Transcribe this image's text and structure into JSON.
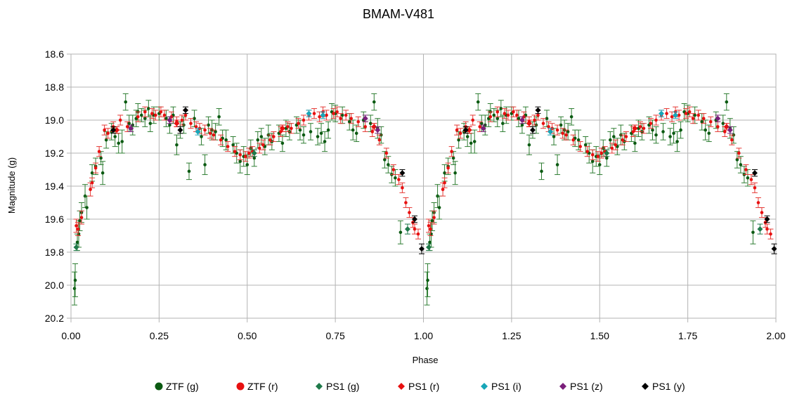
{
  "chart_data": {
    "type": "scatter",
    "title": "BMAM-V481",
    "xlabel": "Phase",
    "ylabel": "Magnitude (g)",
    "xlim": [
      0,
      2
    ],
    "ylim": [
      18.6,
      20.2
    ],
    "y_inverted": true,
    "grid": true,
    "legend_position": "bottom",
    "x_ticks": [
      "0.00",
      "0.25",
      "0.50",
      "0.75",
      "1.00",
      "1.25",
      "1.50",
      "1.75",
      "2.00"
    ],
    "y_ticks": [
      "18.6",
      "18.8",
      "19.0",
      "19.2",
      "19.4",
      "19.6",
      "19.8",
      "20.0",
      "20.2"
    ],
    "period_repeat": 1.0,
    "series": [
      {
        "name": "ZTF (g)",
        "marker": "circle",
        "color": "#0b5a12",
        "errcolor": "#2e7d32",
        "points": [
          [
            0.01,
            20.02,
            0.1
          ],
          [
            0.012,
            19.97,
            0.1
          ],
          [
            0.018,
            19.74,
            0.05
          ],
          [
            0.022,
            19.69,
            0.08
          ],
          [
            0.025,
            19.61,
            0.06
          ],
          [
            0.03,
            19.56,
            0.06
          ],
          [
            0.04,
            19.46,
            0.07
          ],
          [
            0.045,
            19.53,
            0.07
          ],
          [
            0.06,
            19.32,
            0.05
          ],
          [
            0.07,
            19.28,
            0.05
          ],
          [
            0.085,
            19.23,
            0.04
          ],
          [
            0.09,
            19.32,
            0.07
          ],
          [
            0.1,
            19.12,
            0.05
          ],
          [
            0.115,
            19.07,
            0.05
          ],
          [
            0.125,
            19.1,
            0.06
          ],
          [
            0.135,
            19.14,
            0.06
          ],
          [
            0.145,
            19.13,
            0.07
          ],
          [
            0.155,
            18.89,
            0.05
          ],
          [
            0.165,
            19.02,
            0.05
          ],
          [
            0.175,
            19.03,
            0.06
          ],
          [
            0.185,
            18.99,
            0.05
          ],
          [
            0.19,
            18.95,
            0.05
          ],
          [
            0.2,
            18.97,
            0.04
          ],
          [
            0.21,
            18.99,
            0.05
          ],
          [
            0.22,
            18.93,
            0.05
          ],
          [
            0.225,
            19.02,
            0.05
          ],
          [
            0.235,
            18.97,
            0.05
          ],
          [
            0.25,
            18.96,
            0.04
          ],
          [
            0.27,
            18.99,
            0.05
          ],
          [
            0.28,
            19.03,
            0.05
          ],
          [
            0.29,
            18.97,
            0.05
          ],
          [
            0.3,
            19.15,
            0.06
          ],
          [
            0.31,
            19.06,
            0.05
          ],
          [
            0.32,
            19.03,
            0.05
          ],
          [
            0.335,
            19.31,
            0.05
          ],
          [
            0.35,
            18.99,
            0.05
          ],
          [
            0.37,
            19.1,
            0.05
          ],
          [
            0.38,
            19.27,
            0.06
          ],
          [
            0.39,
            19.03,
            0.05
          ],
          [
            0.4,
            19.06,
            0.06
          ],
          [
            0.41,
            19.07,
            0.05
          ],
          [
            0.42,
            18.98,
            0.05
          ],
          [
            0.43,
            19.11,
            0.05
          ],
          [
            0.44,
            19.12,
            0.06
          ],
          [
            0.46,
            19.15,
            0.05
          ],
          [
            0.47,
            19.2,
            0.06
          ],
          [
            0.48,
            19.25,
            0.07
          ],
          [
            0.49,
            19.22,
            0.06
          ],
          [
            0.5,
            19.27,
            0.06
          ],
          [
            0.51,
            19.17,
            0.05
          ],
          [
            0.52,
            19.23,
            0.05
          ],
          [
            0.53,
            19.12,
            0.05
          ],
          [
            0.54,
            19.1,
            0.05
          ],
          [
            0.55,
            19.16,
            0.05
          ],
          [
            0.56,
            19.09,
            0.06
          ],
          [
            0.57,
            19.13,
            0.05
          ],
          [
            0.59,
            19.08,
            0.05
          ],
          [
            0.6,
            19.14,
            0.05
          ],
          [
            0.61,
            19.05,
            0.05
          ],
          [
            0.62,
            19.07,
            0.05
          ],
          [
            0.64,
            19.03,
            0.05
          ],
          [
            0.65,
            19.06,
            0.06
          ],
          [
            0.66,
            19.09,
            0.05
          ],
          [
            0.68,
            19.07,
            0.05
          ],
          [
            0.7,
            19.1,
            0.05
          ],
          [
            0.71,
            19.08,
            0.06
          ],
          [
            0.72,
            19.13,
            0.06
          ],
          [
            0.73,
            19.06,
            0.05
          ],
          [
            0.74,
            18.95,
            0.05
          ],
          [
            0.75,
            18.96,
            0.05
          ],
          [
            0.77,
            18.97,
            0.05
          ],
          [
            0.79,
            19.01,
            0.05
          ],
          [
            0.8,
            19.06,
            0.06
          ],
          [
            0.81,
            19.08,
            0.05
          ],
          [
            0.83,
            19.0,
            0.05
          ],
          [
            0.85,
            19.02,
            0.05
          ],
          [
            0.86,
            18.89,
            0.05
          ],
          [
            0.87,
            19.05,
            0.06
          ],
          [
            0.88,
            19.09,
            0.05
          ],
          [
            0.89,
            19.24,
            0.05
          ],
          [
            0.9,
            19.27,
            0.05
          ],
          [
            0.91,
            19.33,
            0.05
          ],
          [
            0.92,
            19.35,
            0.05
          ],
          [
            0.935,
            19.68,
            0.07
          ]
        ]
      },
      {
        "name": "ZTF (r)",
        "marker": "circle",
        "color": "#e81010",
        "errcolor": "#e53935",
        "points": [
          [
            0.015,
            19.64,
            0.04
          ],
          [
            0.02,
            19.66,
            0.04
          ],
          [
            0.03,
            19.59,
            0.04
          ],
          [
            0.055,
            19.42,
            0.04
          ],
          [
            0.06,
            19.38,
            0.03
          ],
          [
            0.07,
            19.29,
            0.03
          ],
          [
            0.08,
            19.19,
            0.03
          ],
          [
            0.095,
            19.06,
            0.03
          ],
          [
            0.105,
            19.08,
            0.03
          ],
          [
            0.12,
            19.04,
            0.03
          ],
          [
            0.14,
            19.0,
            0.03
          ],
          [
            0.16,
            19.04,
            0.03
          ],
          [
            0.19,
            18.98,
            0.03
          ],
          [
            0.21,
            18.95,
            0.03
          ],
          [
            0.23,
            18.96,
            0.03
          ],
          [
            0.24,
            18.97,
            0.03
          ],
          [
            0.255,
            18.95,
            0.03
          ],
          [
            0.265,
            18.97,
            0.03
          ],
          [
            0.285,
            18.98,
            0.03
          ],
          [
            0.3,
            19.01,
            0.03
          ],
          [
            0.315,
            19.0,
            0.03
          ],
          [
            0.325,
            18.97,
            0.03
          ],
          [
            0.34,
            19.02,
            0.03
          ],
          [
            0.355,
            19.04,
            0.03
          ],
          [
            0.365,
            19.05,
            0.03
          ],
          [
            0.38,
            19.06,
            0.03
          ],
          [
            0.395,
            19.08,
            0.03
          ],
          [
            0.405,
            19.09,
            0.03
          ],
          [
            0.425,
            19.12,
            0.03
          ],
          [
            0.445,
            19.16,
            0.03
          ],
          [
            0.465,
            19.19,
            0.03
          ],
          [
            0.48,
            19.21,
            0.03
          ],
          [
            0.495,
            19.22,
            0.03
          ],
          [
            0.505,
            19.2,
            0.03
          ],
          [
            0.515,
            19.19,
            0.03
          ],
          [
            0.535,
            19.17,
            0.03
          ],
          [
            0.545,
            19.15,
            0.03
          ],
          [
            0.565,
            19.12,
            0.03
          ],
          [
            0.575,
            19.1,
            0.03
          ],
          [
            0.595,
            19.07,
            0.03
          ],
          [
            0.615,
            19.04,
            0.03
          ],
          [
            0.625,
            19.05,
            0.03
          ],
          [
            0.645,
            19.02,
            0.03
          ],
          [
            0.66,
            19.0,
            0.03
          ],
          [
            0.675,
            18.97,
            0.03
          ],
          [
            0.69,
            18.96,
            0.03
          ],
          [
            0.705,
            18.98,
            0.03
          ],
          [
            0.715,
            18.95,
            0.03
          ],
          [
            0.725,
            18.97,
            0.03
          ],
          [
            0.745,
            18.96,
            0.03
          ],
          [
            0.755,
            18.95,
            0.03
          ],
          [
            0.765,
            18.99,
            0.03
          ],
          [
            0.78,
            18.97,
            0.03
          ],
          [
            0.795,
            18.99,
            0.03
          ],
          [
            0.815,
            19.01,
            0.03
          ],
          [
            0.835,
            19.04,
            0.03
          ],
          [
            0.855,
            19.07,
            0.03
          ],
          [
            0.875,
            19.12,
            0.03
          ],
          [
            0.895,
            19.2,
            0.03
          ],
          [
            0.915,
            19.3,
            0.03
          ],
          [
            0.93,
            19.36,
            0.03
          ],
          [
            0.94,
            19.41,
            0.03
          ],
          [
            0.95,
            19.5,
            0.03
          ],
          [
            0.96,
            19.56,
            0.03
          ],
          [
            0.97,
            19.62,
            0.03
          ],
          [
            0.975,
            19.66,
            0.03
          ],
          [
            0.985,
            19.69,
            0.03
          ]
        ]
      },
      {
        "name": "PS1 (g)",
        "marker": "diamond",
        "color": "#1f7a4a",
        "errcolor": "#1f7a4a",
        "points": [
          [
            0.015,
            19.77,
            0.02
          ],
          [
            0.52,
            19.2,
            0.02
          ],
          [
            0.955,
            19.66,
            0.03
          ]
        ]
      },
      {
        "name": "PS1 (r)",
        "marker": "diamond",
        "color": "#e81010",
        "errcolor": "#e81010",
        "points": [
          [
            0.13,
            19.06,
            0.02
          ],
          [
            0.3,
            19.02,
            0.02
          ],
          [
            0.6,
            19.05,
            0.02
          ],
          [
            0.86,
            19.04,
            0.02
          ]
        ]
      },
      {
        "name": "PS1 (i)",
        "marker": "diamond",
        "color": "#17a6b8",
        "errcolor": "#17a6b8",
        "points": [
          [
            0.36,
            19.07,
            0.02
          ],
          [
            0.675,
            18.96,
            0.02
          ],
          [
            0.715,
            18.97,
            0.02
          ]
        ]
      },
      {
        "name": "PS1 (z)",
        "marker": "diamond",
        "color": "#7a1f7a",
        "errcolor": "#7a1f7a",
        "points": [
          [
            0.17,
            19.05,
            0.02
          ],
          [
            0.28,
            19.0,
            0.02
          ],
          [
            0.835,
            18.99,
            0.02
          ],
          [
            0.87,
            19.06,
            0.02
          ]
        ]
      },
      {
        "name": "PS1 (y)",
        "marker": "diamond",
        "color": "#000000",
        "errcolor": "#000000",
        "points": [
          [
            0.12,
            19.06,
            0.02
          ],
          [
            0.31,
            19.06,
            0.02
          ],
          [
            0.325,
            18.94,
            0.02
          ],
          [
            0.94,
            19.32,
            0.02
          ],
          [
            0.975,
            19.6,
            0.02
          ],
          [
            0.995,
            19.78,
            0.03
          ]
        ]
      }
    ]
  }
}
